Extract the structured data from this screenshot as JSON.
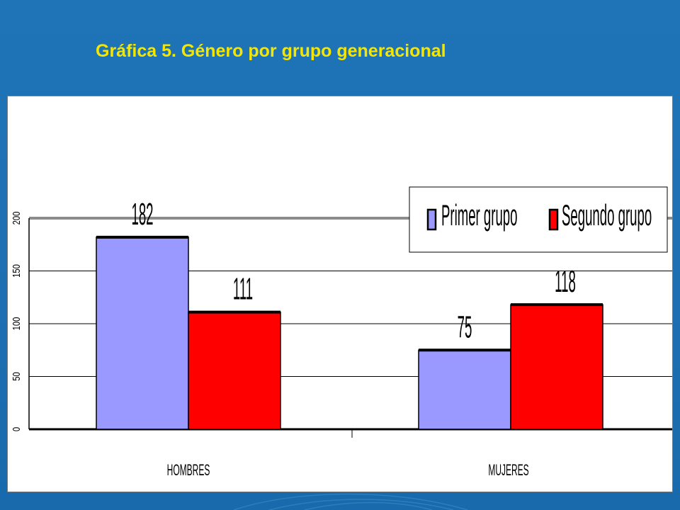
{
  "slide": {
    "title": "Gráfica 5. Género por grupo generacional"
  },
  "colors": {
    "background": "#1f74b8",
    "title": "#f5e600",
    "series1": "#9999ff",
    "series2": "#ff0000"
  },
  "chart_data": {
    "type": "bar",
    "title": "",
    "xlabel": "",
    "ylabel": "",
    "categories": [
      "HOMBRES",
      "MUJERES"
    ],
    "series": [
      {
        "name": "Primer grupo",
        "values": [
          182,
          75
        ],
        "color": "#9999ff"
      },
      {
        "name": "Segundo grupo",
        "values": [
          111,
          118
        ],
        "color": "#ff0000"
      }
    ],
    "ylim": [
      0,
      200
    ],
    "yticks": [
      0,
      50,
      100,
      150,
      200
    ],
    "grid": true,
    "legend": "top-right"
  }
}
